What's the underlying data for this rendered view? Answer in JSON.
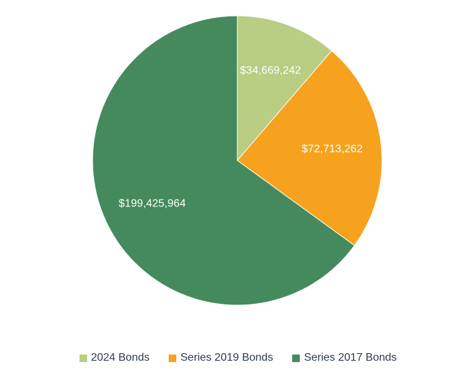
{
  "chart_data": {
    "type": "pie",
    "title": "",
    "slices": [
      {
        "name": "2024 Bonds",
        "value": 34669242,
        "label": "$34,669,242",
        "color": "#b9cd83"
      },
      {
        "name": "Series 2019 Bonds",
        "value": 72713262,
        "label": "$72,713,262",
        "color": "#f6a21e"
      },
      {
        "name": "Series 2017 Bonds",
        "value": 199425964,
        "label": "$199,425,964",
        "color": "#458a5c"
      }
    ],
    "start_angle": "12 o'clock, clockwise",
    "legend_position": "bottom",
    "data_labels_color": "#ffffff"
  }
}
